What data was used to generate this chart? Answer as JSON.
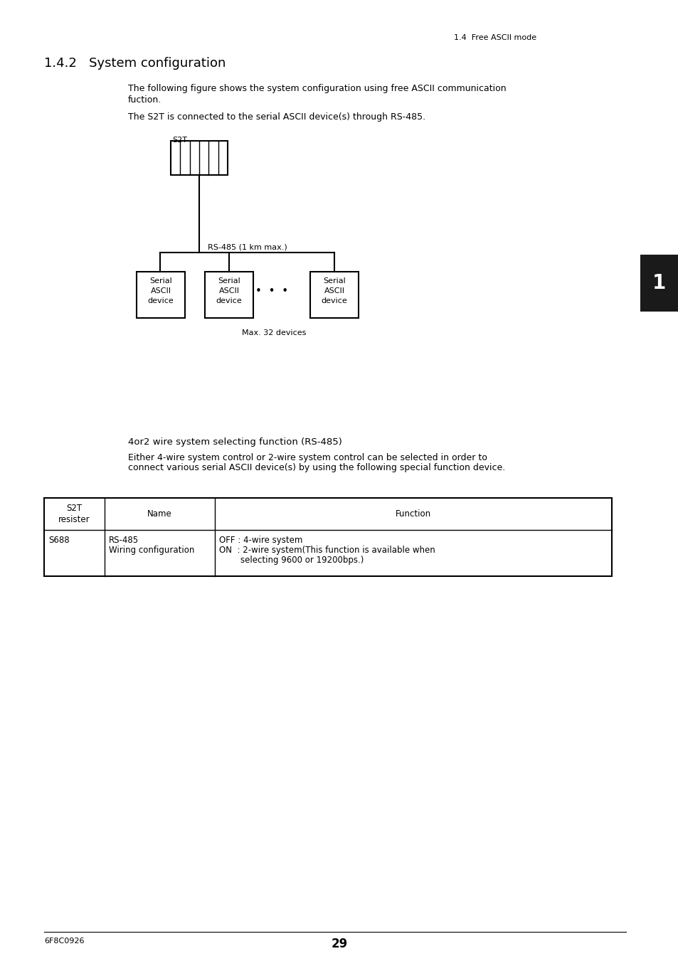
{
  "bg_color": "#ffffff",
  "page_header": "1.4  Free ASCII mode",
  "section_title": "1.4.2   System configuration",
  "para1_line1": "The following figure shows the system configuration using free ASCII communication",
  "para1_line2": "fuction.",
  "para2": "The S2T is connected to the serial ASCII device(s) through RS-485.",
  "s2t_label": "S2T",
  "rs485_label": "RS-485 (1 km max.)",
  "max_devices_label": "Max. 32 devices",
  "device_line1": "Serial",
  "device_line2": "ASCII",
  "device_line3": "device",
  "dots_label": "•  •  •",
  "func_title": "4or2 wire system selecting function (RS-485)",
  "func_para_line1": "Either 4-wire system control or 2-wire system control can be selected in order to",
  "func_para_line2": "connect various serial ASCII device(s) by using the following special function device.",
  "hdr0": "S2T\nresister",
  "hdr1": "Name",
  "hdr2": "Function",
  "row0_c0": "S688",
  "row0_c1_l1": "RS-485",
  "row0_c1_l2": "Wiring configuration",
  "row0_c2_l1": "OFF : 4-wire system",
  "row0_c2_l2": "ON  : 2-wire system(This function is available when",
  "row0_c2_l3": "        selecting 9600 or 19200bps.)",
  "page_number": "29",
  "footer_left": "6F8C0926",
  "tab_marker": "1",
  "tab_color": "#1a1a1a"
}
